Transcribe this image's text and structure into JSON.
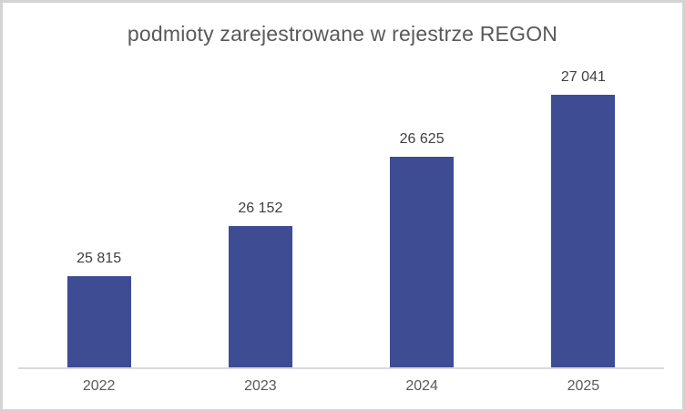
{
  "chart_data": {
    "type": "bar",
    "title": "podmioty zarejestrowane w rejestrze REGON",
    "categories": [
      "2022",
      "2023",
      "2024",
      "2025"
    ],
    "values": [
      25815,
      26152,
      26625,
      27041
    ],
    "data_labels": [
      "25 815",
      "26 152",
      "26 625",
      "27 041"
    ],
    "xlabel": "",
    "ylabel": "",
    "ylim": [
      25200,
      27250
    ],
    "grid": false,
    "legend": "none",
    "y_axis_visible": false,
    "colors": {
      "bar_fill": "#3e4c94",
      "title_text": "#595959",
      "data_label_text": "#404040",
      "tick_text": "#595959",
      "axis_line": "#d9d9d9",
      "frame_border": "#d3d3d3",
      "background": "#ffffff"
    }
  }
}
